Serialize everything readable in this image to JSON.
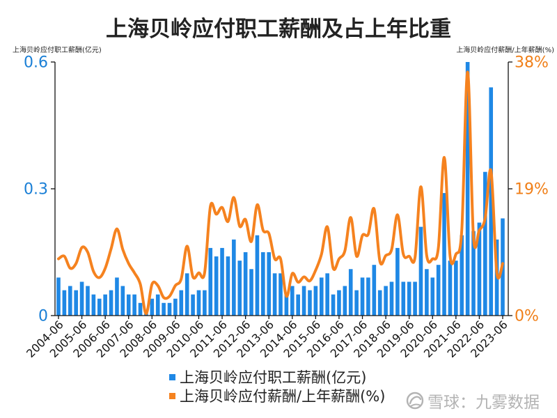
{
  "watermark": "雪球：九雾数据",
  "colors": {
    "bar": "#1f88e5",
    "line": "#f5821f",
    "left_axis_text": "#1a7fd6",
    "right_axis_text": "#f07f18",
    "watermark": "#b3b3b3"
  },
  "chart_data": {
    "type": "bar",
    "title": "上海贝岭应付职工薪酬及占上年比重",
    "legend": "bottom-center",
    "grid": false,
    "x": {
      "values": [
        "2004-06",
        "2004-09",
        "2004-12",
        "2005-03",
        "2005-06",
        "2005-09",
        "2005-12",
        "2006-03",
        "2006-06",
        "2006-09",
        "2006-12",
        "2007-03",
        "2007-06",
        "2007-09",
        "2007-12",
        "2008-03",
        "2008-06",
        "2008-09",
        "2008-12",
        "2009-03",
        "2009-06",
        "2009-09",
        "2009-12",
        "2010-03",
        "2010-06",
        "2010-09",
        "2010-12",
        "2011-03",
        "2011-06",
        "2011-09",
        "2011-12",
        "2012-03",
        "2012-06",
        "2012-09",
        "2012-12",
        "2013-03",
        "2013-06",
        "2013-09",
        "2013-12",
        "2014-03",
        "2014-06",
        "2014-09",
        "2014-12",
        "2015-03",
        "2015-06",
        "2015-09",
        "2015-12",
        "2016-03",
        "2016-06",
        "2016-09",
        "2016-12",
        "2017-03",
        "2017-06",
        "2017-09",
        "2017-12",
        "2018-03",
        "2018-06",
        "2018-09",
        "2018-12",
        "2019-03",
        "2019-06",
        "2019-09",
        "2019-12",
        "2020-03",
        "2020-06",
        "2020-09",
        "2020-12",
        "2021-03",
        "2021-06",
        "2021-09",
        "2021-12",
        "2022-03",
        "2022-06",
        "2022-09",
        "2022-12",
        "2023-03",
        "2023-06"
      ],
      "tick_labels": [
        "2004-06",
        "2005-06",
        "2006-06",
        "2007-06",
        "2008-06",
        "2009-06",
        "2010-06",
        "2011-06",
        "2012-06",
        "2013-06",
        "2014-06",
        "2015-06",
        "2016-06",
        "2017-06",
        "2018-06",
        "2019-06",
        "2020-06",
        "2021-06",
        "2022-06",
        "2023-06"
      ]
    },
    "y_left": {
      "label": "上海贝岭应付职工薪酬(亿元)",
      "lim": [
        0,
        0.6
      ],
      "ticks": [
        0,
        0.3,
        0.6
      ],
      "tick_labels": [
        "0",
        "0.3",
        "0.6"
      ]
    },
    "y_right": {
      "label": "上海贝岭应付薪酬/上年薪酬(%)",
      "lim": [
        0,
        38
      ],
      "ticks": [
        0,
        19,
        38
      ],
      "tick_labels": [
        "0%",
        "19%",
        "38%"
      ]
    },
    "series": [
      {
        "name": "上海贝岭应付职工薪酬(亿元)",
        "type": "bar",
        "axis": "left",
        "color": "#1f88e5",
        "values": [
          0.09,
          0.06,
          0.07,
          0.06,
          0.08,
          0.07,
          0.05,
          0.04,
          0.05,
          0.06,
          0.09,
          0.07,
          0.05,
          0.05,
          0.03,
          0.01,
          0.04,
          0.05,
          0.03,
          0.03,
          0.04,
          0.06,
          0.1,
          0.05,
          0.06,
          0.06,
          0.16,
          0.14,
          0.16,
          0.14,
          0.18,
          0.13,
          0.15,
          0.11,
          0.19,
          0.15,
          0.15,
          0.1,
          0.1,
          0.05,
          0.07,
          0.05,
          0.07,
          0.06,
          0.07,
          0.09,
          0.1,
          0.05,
          0.06,
          0.07,
          0.11,
          0.06,
          0.09,
          0.09,
          0.12,
          0.06,
          0.07,
          0.08,
          0.16,
          0.08,
          0.08,
          0.08,
          0.21,
          0.11,
          0.09,
          0.12,
          0.29,
          0.13,
          0.13,
          0.19,
          0.6,
          0.2,
          0.22,
          0.34,
          0.54,
          0.18,
          0.23
        ]
      },
      {
        "name": "上海贝岭应付薪酬/上年薪酬(%)",
        "type": "line",
        "axis": "right",
        "color": "#f5821f",
        "values": [
          8.5,
          8.9,
          7.1,
          7.8,
          10.2,
          9.5,
          6.6,
          5.7,
          7.1,
          10.0,
          13.0,
          9.9,
          7.8,
          6.4,
          4.7,
          0.3,
          4.7,
          4.5,
          2.7,
          2.9,
          4.5,
          5.5,
          10.4,
          5.8,
          6.4,
          6.4,
          16.4,
          15.2,
          16.2,
          14.1,
          17.7,
          13.4,
          14.4,
          11.1,
          16.6,
          12.8,
          12.3,
          8.5,
          8.5,
          2.9,
          6.3,
          5.0,
          5.8,
          5.2,
          6.8,
          9.2,
          13.3,
          7.1,
          8.5,
          9.7,
          14.7,
          8.9,
          12.0,
          12.2,
          16.0,
          8.1,
          9.0,
          9.9,
          15.1,
          9.2,
          8.9,
          8.7,
          19.3,
          9.0,
          8.5,
          10.2,
          23.7,
          8.9,
          9.2,
          12.8,
          36.5,
          11.8,
          12.8,
          14.6,
          21.7,
          6.4,
          7.8
        ]
      }
    ]
  }
}
